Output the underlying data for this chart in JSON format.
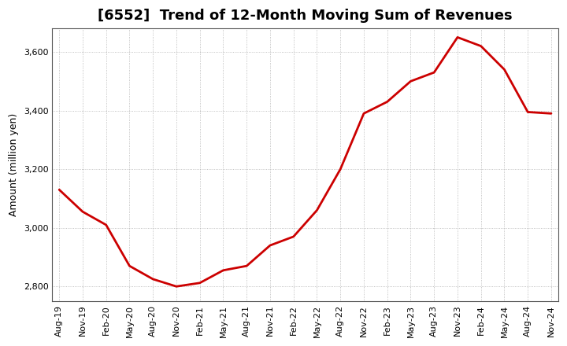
{
  "title": "[6552]  Trend of 12-Month Moving Sum of Revenues",
  "ylabel": "Amount (million yen)",
  "line_color": "#cc0000",
  "background_color": "#ffffff",
  "grid_color": "#b0b0b0",
  "ylim": [
    2750,
    3680
  ],
  "yticks": [
    2800,
    3000,
    3200,
    3400,
    3600
  ],
  "values": [
    3130,
    3055,
    3010,
    2870,
    2825,
    2800,
    2812,
    2855,
    2870,
    2940,
    2970,
    3060,
    3200,
    3390,
    3430,
    3500,
    3530,
    3650,
    3620,
    3540,
    3395,
    3390
  ],
  "xtick_labels": [
    "Aug-19",
    "Nov-19",
    "Feb-20",
    "May-20",
    "Aug-20",
    "Nov-20",
    "Feb-21",
    "May-21",
    "Aug-21",
    "Nov-21",
    "Feb-22",
    "May-22",
    "Aug-22",
    "Nov-22",
    "Feb-23",
    "May-23",
    "Aug-23",
    "Nov-23",
    "Feb-24",
    "May-24",
    "Aug-24",
    "Nov-24"
  ],
  "title_fontsize": 13,
  "ylabel_fontsize": 9,
  "tick_fontsize": 8
}
